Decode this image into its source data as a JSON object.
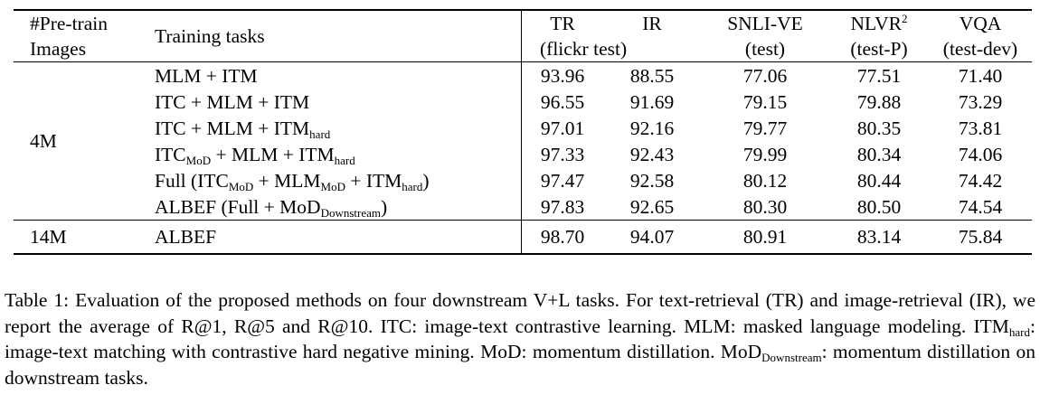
{
  "table": {
    "header": {
      "images_line1": "#Pre-train",
      "images_line2": "Images",
      "tasks": "Training tasks",
      "tr": "TR",
      "ir": "IR",
      "flickr": "(flickr test)",
      "snli": "SNLI-VE",
      "snli_sub": "(test)",
      "nlvr": "NLVR",
      "nlvr_sup": "2",
      "nlvr_sub": "(test-P)",
      "vqa": "VQA",
      "vqa_sub": "(test-dev)"
    },
    "group_4m": "4M",
    "rows_4m": [
      {
        "task": [
          {
            "t": "MLM + ITM"
          }
        ],
        "tr": "93.96",
        "ir": "88.55",
        "snli": "77.06",
        "nlvr": "77.51",
        "vqa": "71.40"
      },
      {
        "task": [
          {
            "t": "ITC + MLM + ITM"
          }
        ],
        "tr": "96.55",
        "ir": "91.69",
        "snli": "79.15",
        "nlvr": "79.88",
        "vqa": "73.29"
      },
      {
        "task": [
          {
            "t": "ITC + MLM + ITM"
          },
          {
            "sub": "hard"
          }
        ],
        "tr": "97.01",
        "ir": "92.16",
        "snli": "79.77",
        "nlvr": "80.35",
        "vqa": "73.81"
      },
      {
        "task": [
          {
            "t": "ITC"
          },
          {
            "sub": "MoD"
          },
          {
            "t": " + MLM + ITM"
          },
          {
            "sub": "hard"
          }
        ],
        "tr": "97.33",
        "ir": "92.43",
        "snli": "79.99",
        "nlvr": "80.34",
        "vqa": "74.06"
      },
      {
        "task": [
          {
            "t": "Full (ITC"
          },
          {
            "sub": "MoD"
          },
          {
            "t": " + MLM"
          },
          {
            "sub": "MoD"
          },
          {
            "t": " + ITM"
          },
          {
            "sub": "hard"
          },
          {
            "t": ")"
          }
        ],
        "tr": "97.47",
        "ir": "92.58",
        "snli": "80.12",
        "nlvr": "80.44",
        "vqa": "74.42"
      },
      {
        "task": [
          {
            "t": "ALBEF (Full + MoD"
          },
          {
            "sub": "Downstream"
          },
          {
            "t": ")"
          }
        ],
        "tr": "97.83",
        "ir": "92.65",
        "snli": "80.30",
        "nlvr": "80.50",
        "vqa": "74.54"
      }
    ],
    "row_14m": {
      "images": "14M",
      "task": "ALBEF",
      "tr": "98.70",
      "ir": "94.07",
      "snli": "80.91",
      "nlvr": "83.14",
      "vqa": "75.84"
    }
  },
  "caption": [
    {
      "t": "Table 1:  Evaluation of the proposed methods on four downstream V+L tasks.  For text-retrieval (TR) and image-retrieval (IR), we report the average of R@1, R@5 and R@10. ITC: image-text contrastive learning. MLM: masked language modeling. ITM"
    },
    {
      "sub": "hard"
    },
    {
      "t": ": image-text matching with contrastive hard negative mining. MoD: momentum distillation. MoD"
    },
    {
      "sub": "Downstream"
    },
    {
      "t": ": momentum distillation on downstream tasks."
    }
  ]
}
